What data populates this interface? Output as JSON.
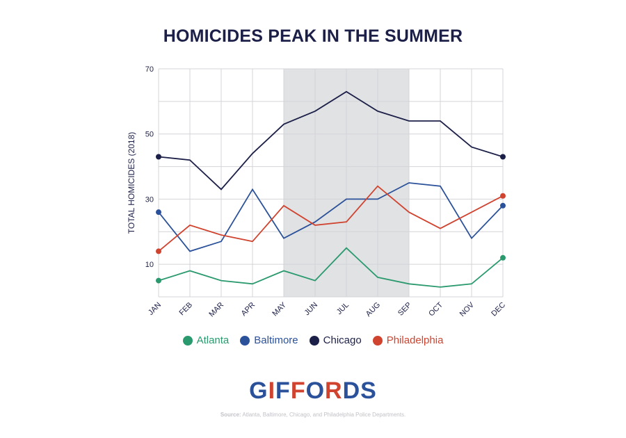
{
  "colors": {
    "title": "#1c1f47",
    "grid": "#d4d4d8",
    "shade": "#e1e2e4",
    "axis_text": "#1c1f47",
    "logo_blue": "#2a5199",
    "logo_red": "#d0432f"
  },
  "logo": {
    "text": "GIFFORDS"
  },
  "source": {
    "label": "Source:",
    "text": " Atlanta, Baltimore, Chicago, and Philadelphia Police Departments."
  },
  "chart_data": {
    "type": "line",
    "title": "HOMICIDES PEAK IN THE SUMMER",
    "ylabel": "TOTAL HOMICIDES (2018)",
    "xlabel": "",
    "categories": [
      "JAN",
      "FEB",
      "MAR",
      "APR",
      "MAY",
      "JUN",
      "JUL",
      "AUG",
      "SEP",
      "OCT",
      "NOV",
      "DEC"
    ],
    "ylim": [
      0,
      70
    ],
    "yticks": [
      10,
      30,
      50,
      70
    ],
    "grid": true,
    "legend_position": "bottom",
    "highlight_range": [
      "MAY",
      "SEP"
    ],
    "series": [
      {
        "name": "Atlanta",
        "color": "#2a9a6e",
        "values": [
          5,
          8,
          5,
          4,
          8,
          5,
          15,
          6,
          4,
          3,
          4,
          12
        ]
      },
      {
        "name": "Baltimore",
        "color": "#2a5199",
        "values": [
          26,
          14,
          17,
          33,
          18,
          23,
          30,
          30,
          35,
          34,
          18,
          28
        ]
      },
      {
        "name": "Chicago",
        "color": "#1c1f47",
        "values": [
          43,
          42,
          33,
          44,
          53,
          57,
          63,
          57,
          54,
          54,
          46,
          43
        ]
      },
      {
        "name": "Philadelphia",
        "color": "#d0432f",
        "values": [
          14,
          22,
          19,
          17,
          28,
          22,
          23,
          34,
          26,
          21,
          26,
          31
        ]
      }
    ]
  }
}
